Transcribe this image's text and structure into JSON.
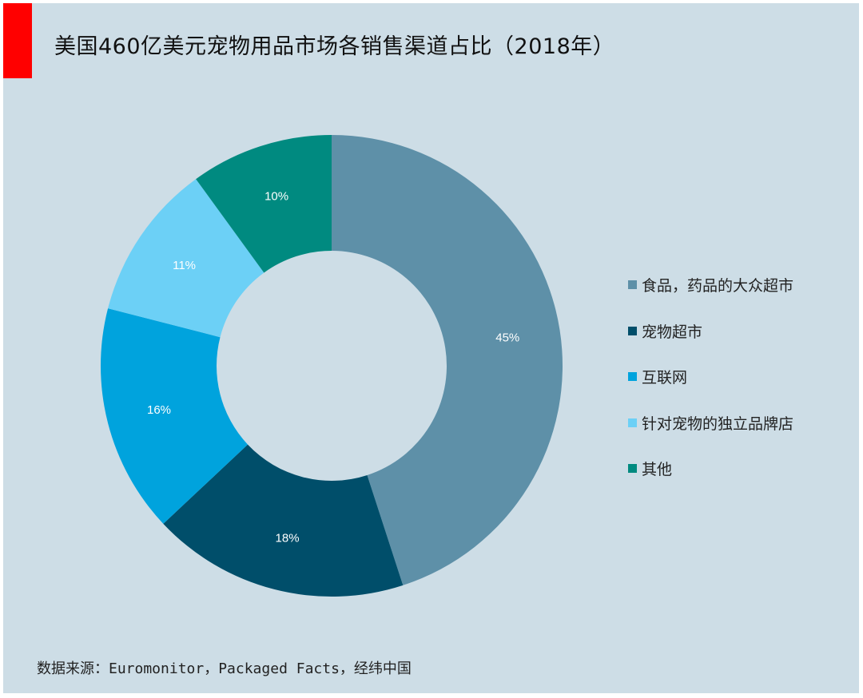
{
  "title": "美国460亿美元宠物用品市场各销售渠道占比（2018年）",
  "source": "数据来源：Euromonitor，Packaged Facts，经纬中国",
  "colors": {
    "background": "#cddde6",
    "accent": "#ff0000"
  },
  "chart_data": {
    "type": "pie",
    "variant": "donut",
    "title": "美国460亿美元宠物用品市场各销售渠道占比（2018年）",
    "unit": "%",
    "legend_position": "right",
    "slices": [
      {
        "label": "食品，药品的大众超市",
        "value": 45,
        "display": "45%",
        "color": "#5e90a8"
      },
      {
        "label": "宠物超市",
        "value": 18,
        "display": "18%",
        "color": "#004e6a"
      },
      {
        "label": "互联网",
        "value": 16,
        "display": "16%",
        "color": "#00a3dd"
      },
      {
        "label": "针对宠物的独立品牌店",
        "value": 11,
        "display": "11%",
        "color": "#6cd0f6"
      },
      {
        "label": "其他",
        "value": 10,
        "display": "10%",
        "color": "#008a80"
      }
    ]
  }
}
